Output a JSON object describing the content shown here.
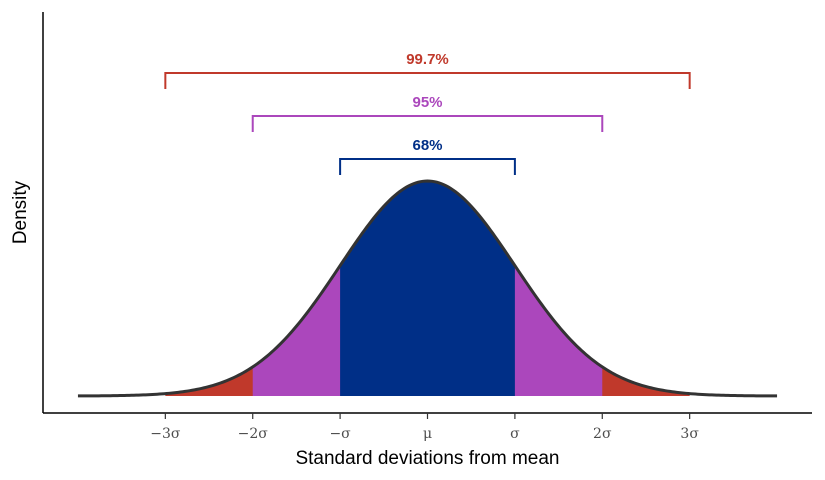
{
  "chart_data": {
    "type": "area",
    "title": "",
    "xlabel": "Standard deviations from mean",
    "ylabel": "Density",
    "xlim": [
      -4.4,
      4.4
    ],
    "curve_range": [
      -4,
      4
    ],
    "mu": 0,
    "sigma": 1,
    "grid": false,
    "ticks": [
      {
        "x": -3,
        "label": "−3σ"
      },
      {
        "x": -2,
        "label": "−2σ"
      },
      {
        "x": -1,
        "label": "−σ"
      },
      {
        "x": 0,
        "label": "μ"
      },
      {
        "x": 1,
        "label": "σ"
      },
      {
        "x": 2,
        "label": "2σ"
      },
      {
        "x": 3,
        "label": "3σ"
      }
    ],
    "bands": [
      {
        "from": -3,
        "to": 3,
        "color": "#c0392b"
      },
      {
        "from": -2,
        "to": 2,
        "color": "#ab47bc"
      },
      {
        "from": -1,
        "to": 1,
        "color": "#002f87"
      }
    ],
    "brackets": [
      {
        "from": -3,
        "to": 3,
        "label": "99.7%",
        "color": "#c0392b"
      },
      {
        "from": -2,
        "to": 2,
        "label": "95%",
        "color": "#ab47bc"
      },
      {
        "from": -1,
        "to": 1,
        "label": "68%",
        "color": "#002f87"
      }
    ],
    "curve_color": "#333333"
  }
}
